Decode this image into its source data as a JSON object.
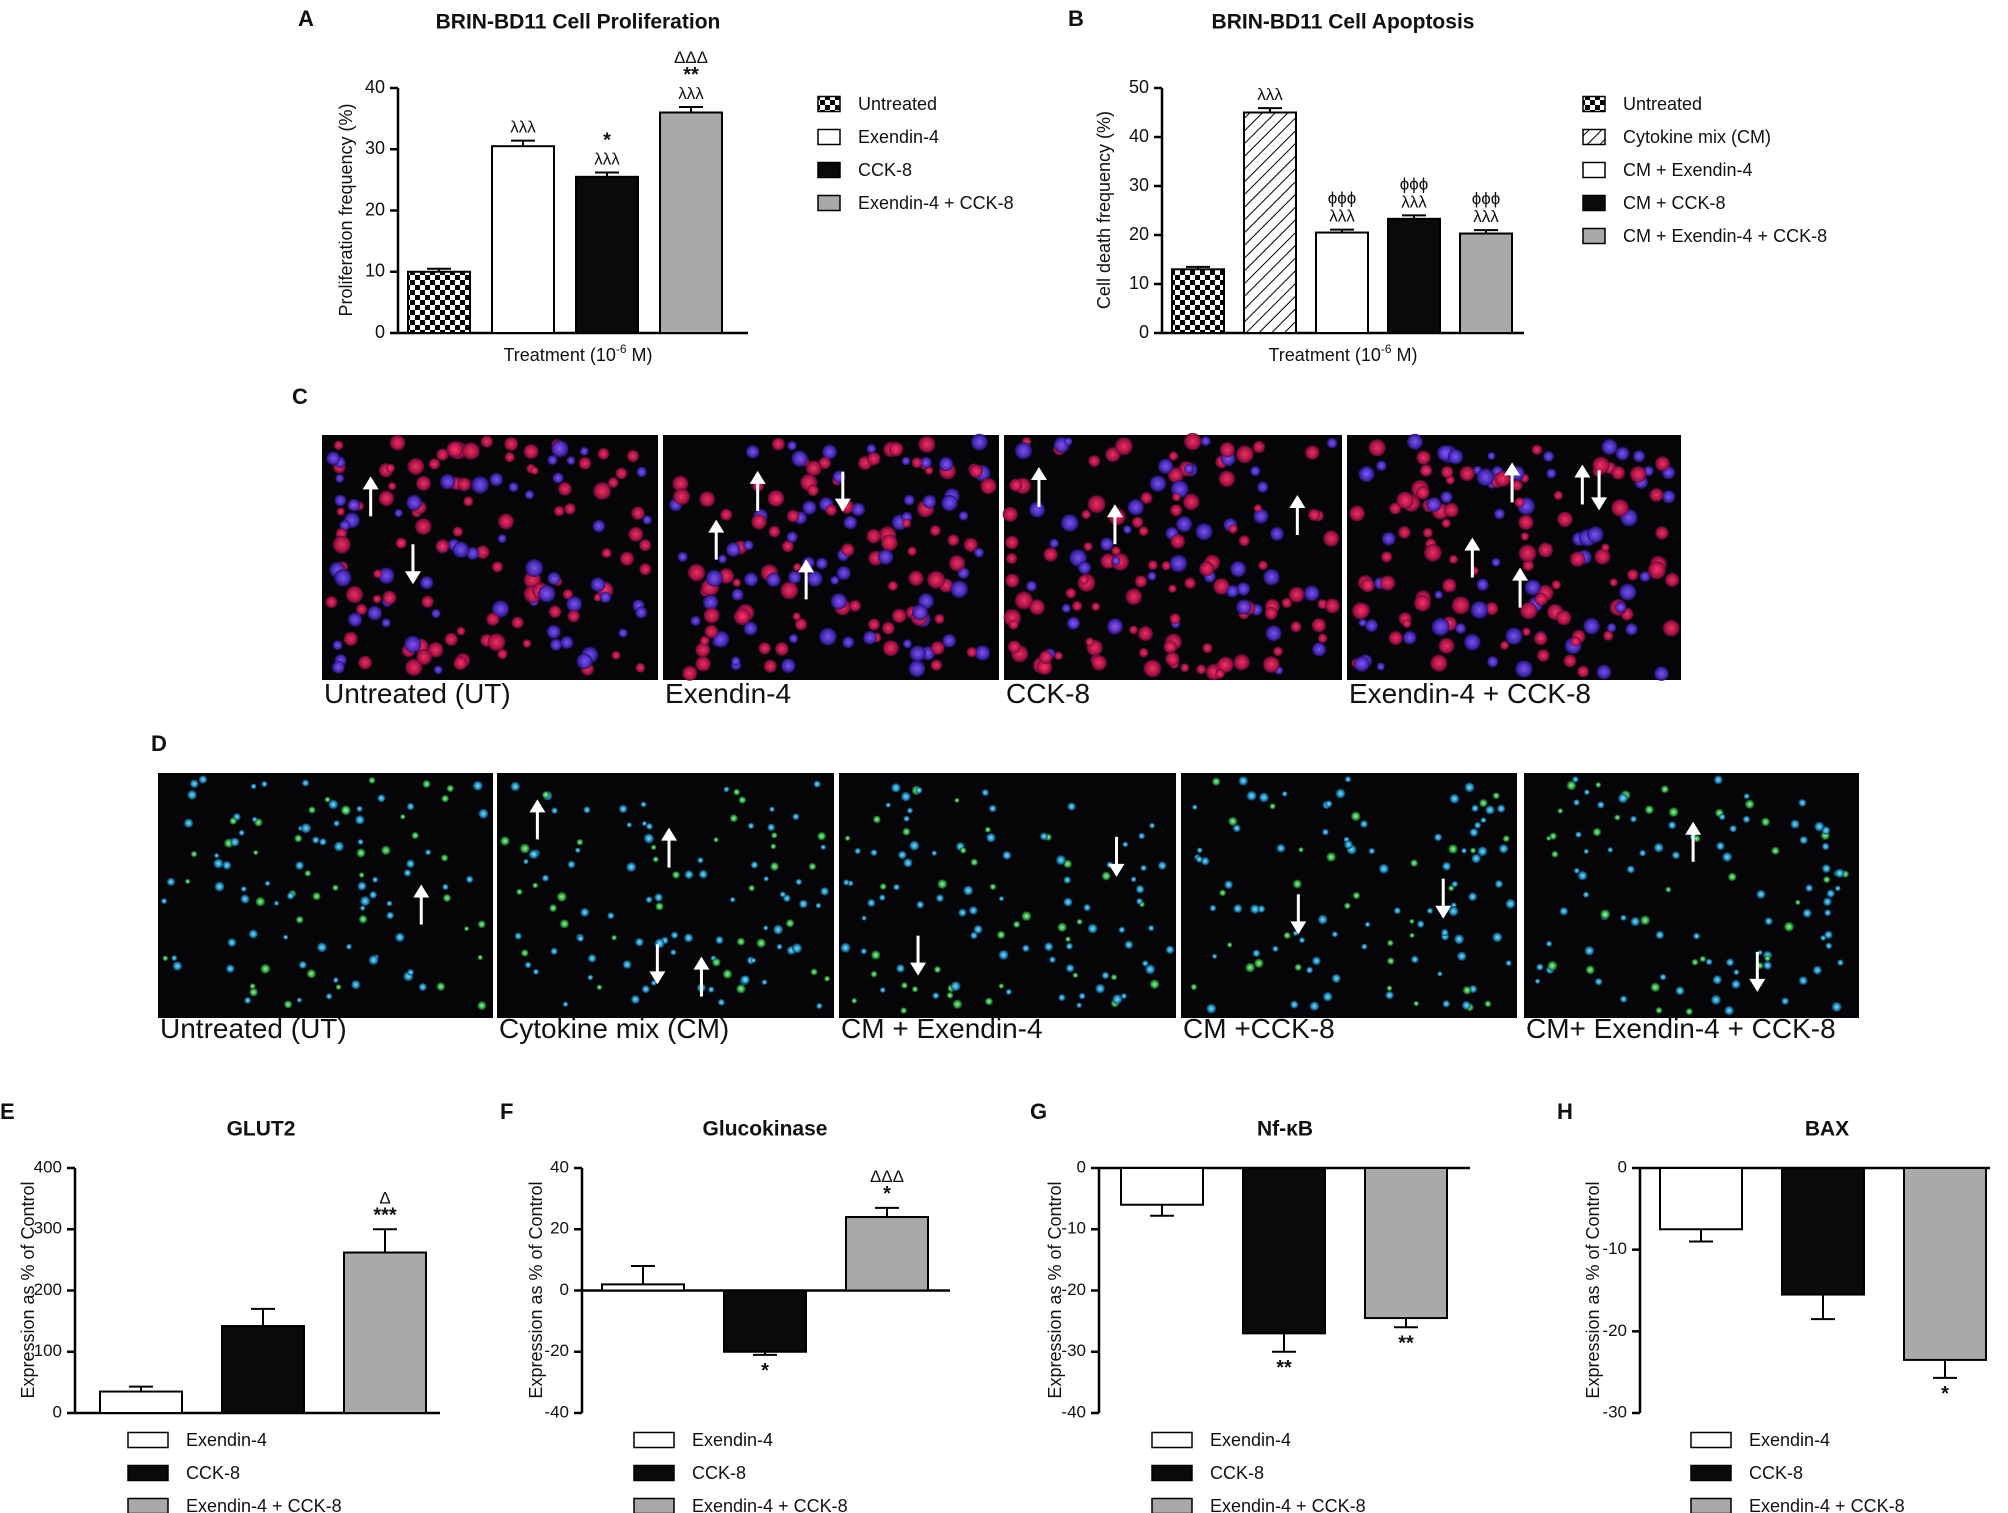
{
  "colors": {
    "axis": "#000000",
    "white_bar": "#ffffff",
    "black_bar": "#0a0a0a",
    "grey_bar": "#a9a9ab",
    "micro_bg": "#050508"
  },
  "chart_data": [
    {
      "panel": "A",
      "type": "bar",
      "title": "BRIN-BD11 Cell Proliferation",
      "ylabel": "Proliferation frequency (%)",
      "xlabel": "Treatment (10-6 M)",
      "xlabel_base": "Treatment (10",
      "xlabel_sup": "-6",
      "xlabel_end": " M)",
      "ylim": [
        0,
        40
      ],
      "yticks": [
        "0",
        "10",
        "20",
        "30",
        "40"
      ],
      "legend_position": "right",
      "categories": [
        "Untreated",
        "Exendin-4",
        "CCK-8",
        "Exendin-4 + CCK-8"
      ],
      "fills": [
        "checker",
        "white",
        "black",
        "grey"
      ],
      "values": [
        10,
        30.5,
        25.5,
        36
      ],
      "errors": [
        0.5,
        0.9,
        0.7,
        0.9
      ],
      "annotations": [
        [],
        [
          "λλλ"
        ],
        [
          "*",
          "λλλ"
        ],
        [
          "ΔΔΔ",
          "**",
          "λλλ"
        ]
      ]
    },
    {
      "panel": "B",
      "type": "bar",
      "title": "BRIN-BD11 Cell Apoptosis",
      "ylabel": "Cell death frequency (%)",
      "xlabel": "Treatment (10-6 M)",
      "xlabel_base": "Treatment (10",
      "xlabel_sup": "-6",
      "xlabel_end": " M)",
      "ylim": [
        0,
        50
      ],
      "yticks": [
        "0",
        "10",
        "20",
        "30",
        "40",
        "50"
      ],
      "legend_position": "right",
      "categories": [
        "Untreated",
        "Cytokine mix (CM)",
        "CM + Exendin-4",
        "CM + CCK-8",
        "CM + Exendin-4 + CCK-8"
      ],
      "fills": [
        "checker",
        "hatch",
        "white",
        "black",
        "grey"
      ],
      "values": [
        13,
        45,
        20.5,
        23.3,
        20.3
      ],
      "errors": [
        0.5,
        0.9,
        0.6,
        0.7,
        0.7
      ],
      "annotations": [
        [],
        [
          "λλλ"
        ],
        [
          "ϕϕϕ",
          "λλλ"
        ],
        [
          "ϕϕϕ",
          "λλλ"
        ],
        [
          "ϕϕϕ",
          "λλλ"
        ]
      ]
    },
    {
      "panel": "E",
      "type": "bar",
      "title": "GLUT2",
      "ylabel": "Expression as % of Control",
      "ylim": [
        0,
        400
      ],
      "yticks": [
        "0",
        "100",
        "200",
        "300",
        "400"
      ],
      "legend_position": "bottom",
      "categories": [
        "Exendin-4",
        "CCK-8",
        "Exendin-4 + CCK-8"
      ],
      "fills": [
        "white",
        "black",
        "grey"
      ],
      "values": [
        35,
        142,
        262
      ],
      "errors": [
        8,
        28,
        38
      ],
      "annotations": [
        [],
        [],
        [
          "Δ",
          "***"
        ]
      ]
    },
    {
      "panel": "F",
      "type": "bar",
      "title": "Glucokinase",
      "ylabel": "Expression as % of Control",
      "ylim": [
        -40,
        40
      ],
      "yticks": [
        "-40",
        "-20",
        "0",
        "20",
        "40"
      ],
      "legend_position": "bottom",
      "categories": [
        "Exendin-4",
        "CCK-8",
        "Exendin-4 + CCK-8"
      ],
      "fills": [
        "white",
        "black",
        "grey"
      ],
      "values": [
        2,
        -20,
        24
      ],
      "errors": [
        6,
        1,
        3
      ],
      "annotations": [
        [],
        [
          "*"
        ],
        [
          "ΔΔΔ",
          "*"
        ]
      ]
    },
    {
      "panel": "G",
      "type": "bar",
      "title": "Nf-κB",
      "ylabel": "Expression as % of Control",
      "ylim": [
        -40,
        0
      ],
      "yticks": [
        "-40",
        "-30",
        "-20",
        "-10",
        "0"
      ],
      "legend_position": "bottom",
      "categories": [
        "Exendin-4",
        "CCK-8",
        "Exendin-4 + CCK-8"
      ],
      "fills": [
        "white",
        "black",
        "grey"
      ],
      "values": [
        -6,
        -27,
        -24.5
      ],
      "errors": [
        1.8,
        3,
        1.5
      ],
      "annotations": [
        [],
        [
          "**"
        ],
        [
          "**"
        ]
      ]
    },
    {
      "panel": "H",
      "type": "bar",
      "title": "BAX",
      "ylabel": "Expression as % of Control",
      "ylim": [
        -30,
        0
      ],
      "yticks": [
        "-30",
        "-20",
        "-10",
        "0"
      ],
      "legend_position": "bottom",
      "categories": [
        "Exendin-4",
        "CCK-8",
        "Exendin-4 + CCK-8"
      ],
      "fills": [
        "white",
        "black",
        "grey"
      ],
      "values": [
        -7.5,
        -15.5,
        -23.5
      ],
      "errors": [
        1.5,
        3,
        2.2
      ],
      "annotations": [
        [],
        [],
        [
          "*"
        ]
      ]
    }
  ],
  "micrographs": [
    {
      "panel": "C",
      "stain": "red-nuclei",
      "images": [
        {
          "caption": "Untreated (UT)",
          "arrow_count": 2
        },
        {
          "caption": "Exendin-4",
          "arrow_count": 4
        },
        {
          "caption": "CCK-8",
          "arrow_count": 3
        },
        {
          "caption": "Exendin-4 + CCK-8",
          "arrow_count": 5
        }
      ]
    },
    {
      "panel": "D",
      "stain": "green-nuclei",
      "images": [
        {
          "caption": "Untreated (UT)",
          "arrow_count": 1
        },
        {
          "caption": "Cytokine mix (CM)",
          "arrow_count": 4
        },
        {
          "caption": "CM + Exendin-4",
          "arrow_count": 2
        },
        {
          "caption": "CM +CCK-8",
          "arrow_count": 2
        },
        {
          "caption": "CM+ Exendin-4 + CCK-8",
          "arrow_count": 2
        }
      ]
    }
  ]
}
